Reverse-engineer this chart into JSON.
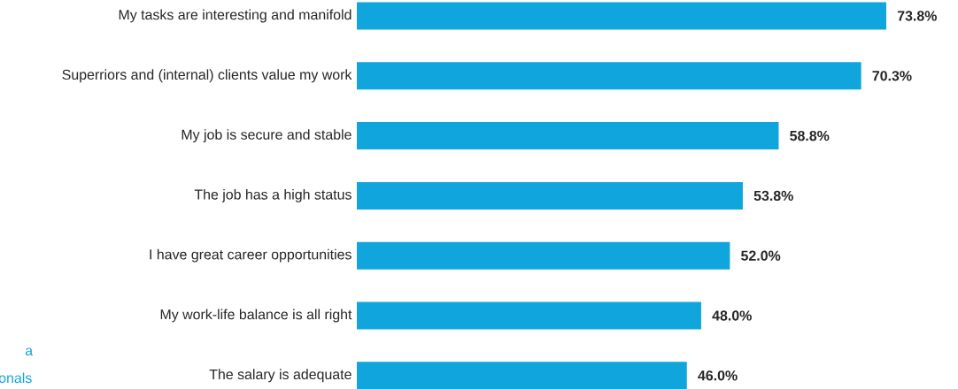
{
  "chart_data": {
    "type": "bar",
    "orientation": "horizontal",
    "categories": [
      "My tasks are interesting and manifold",
      "Superriors and (internal) clients value my work",
      "My job is secure and stable",
      "The job has a high status",
      "I have great career opportunities",
      "My work-life balance is all right",
      "The salary is adequate"
    ],
    "values": [
      73.8,
      70.3,
      58.8,
      53.8,
      52.0,
      48.0,
      46.0
    ],
    "value_labels": [
      "73.8%",
      "70.3%",
      "58.8%",
      "53.8%",
      "52.0%",
      "48.0%",
      "46.0%"
    ],
    "color": "#10a5dc",
    "tick_labels": "y",
    "annotations": [
      "a",
      "onals"
    ]
  }
}
